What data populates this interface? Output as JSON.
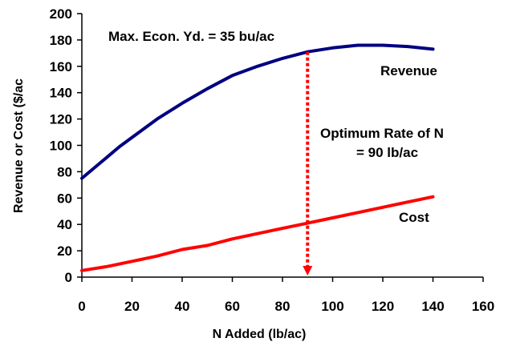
{
  "chart_data": {
    "type": "line",
    "xlabel": "N Added (lb/ac)",
    "ylabel": "Revenue or Cost ($/ac",
    "xlim": [
      0,
      160
    ],
    "ylim": [
      0,
      200
    ],
    "x_ticks": [
      "0",
      "20",
      "40",
      "60",
      "80",
      "100",
      "120",
      "140",
      "160"
    ],
    "y_ticks": [
      "0",
      "20",
      "40",
      "60",
      "80",
      "100",
      "120",
      "140",
      "160",
      "180",
      "200"
    ],
    "grid": false,
    "series": [
      {
        "name": "Revenue",
        "color": "#000080",
        "x": [
          0,
          5,
          10,
          15,
          20,
          30,
          40,
          50,
          60,
          70,
          80,
          90,
          100,
          110,
          120,
          130,
          140
        ],
        "y": [
          75,
          83,
          91,
          99,
          106,
          120,
          132,
          143,
          153,
          160,
          166,
          171,
          174,
          176,
          176,
          175,
          173
        ]
      },
      {
        "name": "Cost",
        "color": "#ff0000",
        "x": [
          0,
          10,
          20,
          30,
          40,
          50,
          60,
          70,
          80,
          90,
          100,
          110,
          120,
          130,
          140
        ],
        "y": [
          5,
          8,
          12,
          16,
          21,
          24,
          29,
          33,
          37,
          41,
          45,
          49,
          53,
          57,
          61
        ]
      }
    ],
    "optimum_line": {
      "x": 90,
      "y_top": 171,
      "color": "#ff0000"
    },
    "annotations": {
      "max_yield": "Max. Econ. Yd. = 35 bu/ac",
      "optimum_line1": "Optimum Rate of N",
      "optimum_line2": "= 90 lb/ac"
    }
  }
}
